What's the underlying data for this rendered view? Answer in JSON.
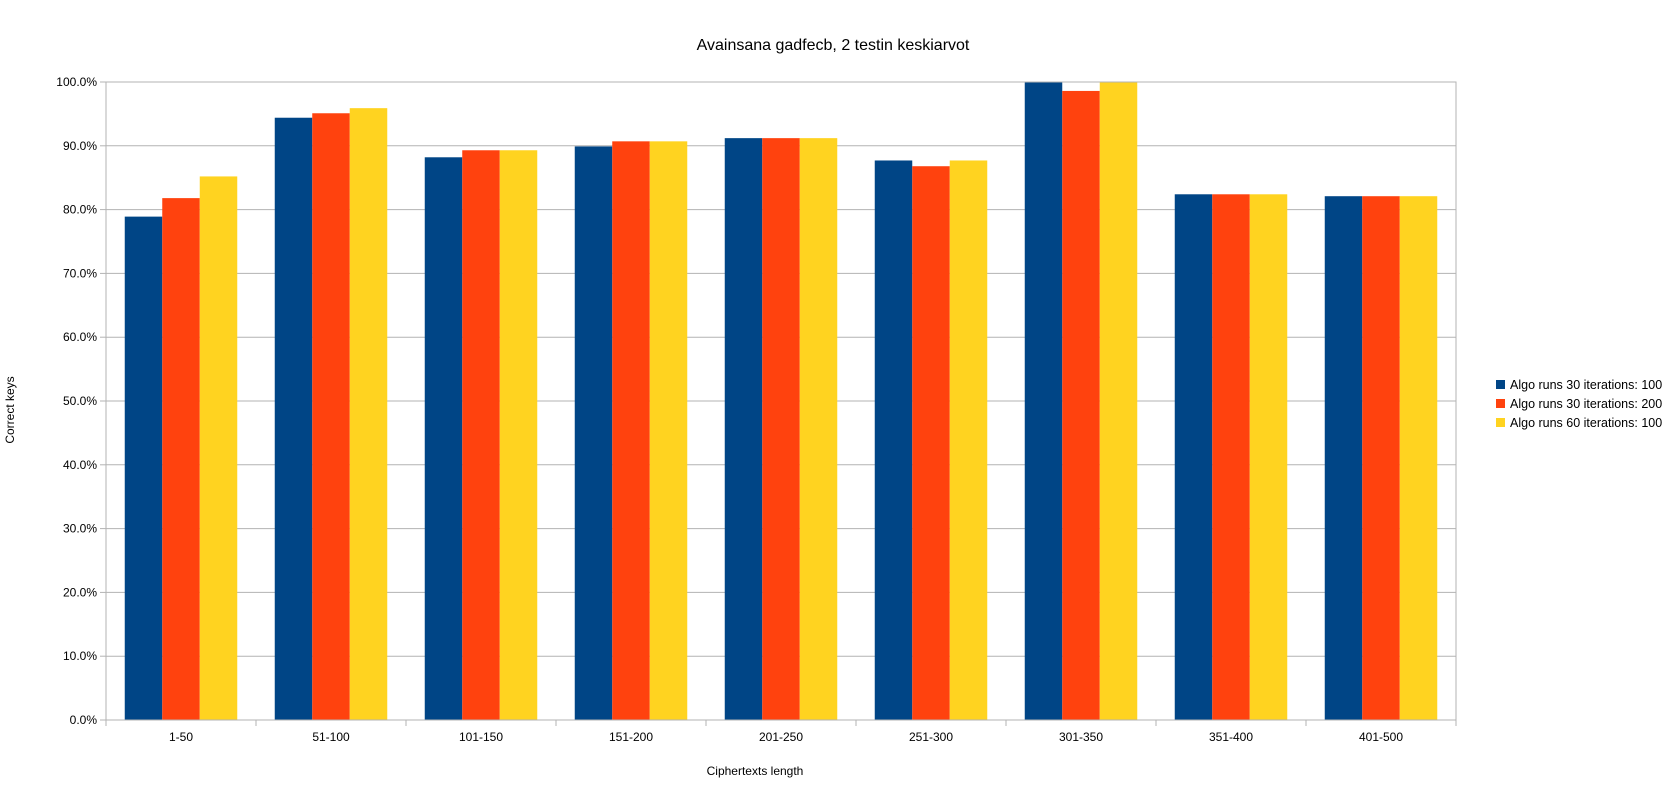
{
  "chart_data": {
    "type": "bar",
    "title": "Avainsana gadfecb, 2 testin keskiarvot",
    "xlabel": "Ciphertexts length",
    "ylabel": "Correct keys",
    "categories": [
      "1-50",
      "51-100",
      "101-150",
      "151-200",
      "201-250",
      "251-300",
      "301-350",
      "351-400",
      "401-500"
    ],
    "series": [
      {
        "name": "Algo runs 30 iterations: 100",
        "color": "#004586",
        "values": [
          78.9,
          94.4,
          88.2,
          89.9,
          91.2,
          87.7,
          100.0,
          82.4,
          82.1
        ]
      },
      {
        "name": "Algo runs 30 iterations: 200",
        "color": "#ff420e",
        "values": [
          81.8,
          95.1,
          89.3,
          90.7,
          91.2,
          86.8,
          98.6,
          82.4,
          82.1
        ]
      },
      {
        "name": "Algo runs 60 iterations: 100",
        "color": "#ffd320",
        "values": [
          85.2,
          95.9,
          89.3,
          90.7,
          91.2,
          87.7,
          100.0,
          82.4,
          82.1
        ]
      }
    ],
    "ylim": [
      0,
      100
    ],
    "y_ticks": [
      "0.0%",
      "10.0%",
      "20.0%",
      "30.0%",
      "40.0%",
      "50.0%",
      "60.0%",
      "70.0%",
      "80.0%",
      "90.0%",
      "100.0%"
    ],
    "y_tick_values": [
      0,
      10,
      20,
      30,
      40,
      50,
      60,
      70,
      80,
      90,
      100
    ],
    "grid": true,
    "gridline_color": "#b3b3b3",
    "legend_position": "right"
  }
}
